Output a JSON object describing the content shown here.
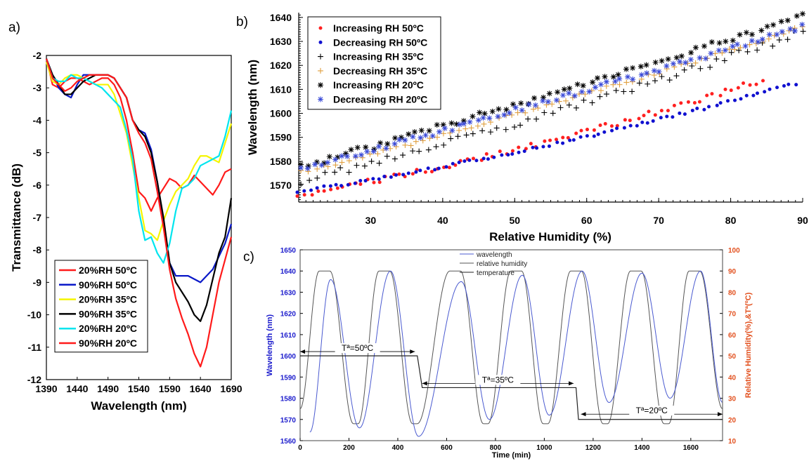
{
  "chart_data": [
    {
      "panel": "a)",
      "type": "line",
      "xlabel": "Wavelength (nm)",
      "ylabel": "Transmittance (dB)",
      "xlim": [
        1390,
        1690
      ],
      "ylim": [
        -12,
        -2
      ],
      "xticks": [
        1390,
        1440,
        1490,
        1540,
        1590,
        1640,
        1690
      ],
      "yticks": [
        -12,
        -11,
        -10,
        -9,
        -8,
        -7,
        -6,
        -5,
        -4,
        -3,
        -2
      ],
      "legend_position": "bottom-left",
      "series": [
        {
          "name": "20%RH 50ºC",
          "color": "#ff1a1a",
          "x": [
            1390,
            1400,
            1410,
            1420,
            1430,
            1440,
            1450,
            1460,
            1470,
            1480,
            1490,
            1500,
            1510,
            1520,
            1530,
            1540,
            1550,
            1560,
            1570,
            1580,
            1590,
            1600,
            1610,
            1620,
            1630,
            1640,
            1650,
            1660,
            1670,
            1680,
            1690
          ],
          "y": [
            -2.1,
            -2.9,
            -3.0,
            -2.8,
            -2.7,
            -2.7,
            -2.8,
            -2.9,
            -2.8,
            -2.7,
            -2.7,
            -2.9,
            -3.3,
            -4.0,
            -5.0,
            -6.2,
            -6.4,
            -6.8,
            -6.4,
            -6.1,
            -5.8,
            -5.9,
            -6.1,
            -6.0,
            -5.7,
            -5.9,
            -6.1,
            -6.3,
            -6.0,
            -5.6,
            -5.5
          ]
        },
        {
          "name": "90%RH 50ºC",
          "color": "#0a18c8",
          "x": [
            1390,
            1400,
            1410,
            1420,
            1430,
            1440,
            1450,
            1460,
            1470,
            1480,
            1490,
            1500,
            1510,
            1520,
            1530,
            1540,
            1550,
            1560,
            1570,
            1580,
            1590,
            1600,
            1610,
            1620,
            1630,
            1640,
            1650,
            1660,
            1670,
            1680,
            1690
          ],
          "y": [
            -2.1,
            -2.6,
            -3.0,
            -3.2,
            -3.3,
            -2.9,
            -2.6,
            -2.6,
            -2.6,
            -2.6,
            -2.6,
            -2.7,
            -3.0,
            -3.3,
            -4.0,
            -4.3,
            -4.4,
            -4.9,
            -5.9,
            -7.2,
            -8.4,
            -8.8,
            -8.8,
            -8.8,
            -8.9,
            -9.0,
            -8.8,
            -8.6,
            -8.2,
            -7.8,
            -7.2
          ]
        },
        {
          "name": "20%RH 35ºC",
          "color": "#f5f500",
          "x": [
            1390,
            1400,
            1410,
            1420,
            1430,
            1440,
            1450,
            1460,
            1470,
            1480,
            1490,
            1500,
            1510,
            1520,
            1530,
            1540,
            1550,
            1560,
            1570,
            1580,
            1590,
            1600,
            1610,
            1620,
            1630,
            1640,
            1650,
            1660,
            1670,
            1680,
            1690
          ],
          "y": [
            -2.2,
            -2.8,
            -2.9,
            -2.7,
            -2.6,
            -2.6,
            -2.7,
            -2.8,
            -2.9,
            -2.9,
            -2.9,
            -3.2,
            -3.8,
            -4.4,
            -5.4,
            -6.4,
            -7.4,
            -7.5,
            -7.7,
            -7.1,
            -6.6,
            -6.2,
            -6.0,
            -5.8,
            -5.4,
            -5.1,
            -5.1,
            -5.2,
            -5.3,
            -4.7,
            -4.1
          ]
        },
        {
          "name": "90%RH 35ºC",
          "color": "#000000",
          "x": [
            1390,
            1400,
            1410,
            1420,
            1430,
            1440,
            1450,
            1460,
            1470,
            1480,
            1490,
            1500,
            1510,
            1520,
            1530,
            1540,
            1550,
            1560,
            1570,
            1580,
            1590,
            1600,
            1610,
            1620,
            1630,
            1640,
            1650,
            1660,
            1670,
            1680,
            1690
          ],
          "y": [
            -2.1,
            -2.6,
            -2.9,
            -3.2,
            -3.2,
            -3.0,
            -2.8,
            -2.7,
            -2.6,
            -2.6,
            -2.6,
            -2.7,
            -3.0,
            -3.3,
            -4.0,
            -4.3,
            -4.5,
            -5.0,
            -5.9,
            -7.0,
            -8.4,
            -9.0,
            -9.3,
            -9.6,
            -10.0,
            -10.2,
            -9.7,
            -8.9,
            -8.1,
            -7.6,
            -6.4
          ]
        },
        {
          "name": "20%RH 20ºC",
          "color": "#00e5ee",
          "x": [
            1390,
            1400,
            1410,
            1420,
            1430,
            1440,
            1450,
            1460,
            1470,
            1480,
            1490,
            1500,
            1510,
            1520,
            1530,
            1540,
            1550,
            1560,
            1570,
            1580,
            1590,
            1600,
            1610,
            1620,
            1630,
            1640,
            1650,
            1660,
            1670,
            1680,
            1690
          ],
          "y": [
            -2.1,
            -2.7,
            -2.8,
            -2.8,
            -2.6,
            -2.7,
            -2.7,
            -2.8,
            -2.9,
            -3.0,
            -3.2,
            -3.4,
            -3.6,
            -4.3,
            -5.2,
            -6.8,
            -7.7,
            -7.6,
            -8.1,
            -8.4,
            -7.8,
            -6.8,
            -6.1,
            -6.0,
            -5.8,
            -5.4,
            -5.3,
            -5.2,
            -5.1,
            -4.5,
            -3.7
          ]
        },
        {
          "name": "90%RH 20ºC",
          "color": "#ff1a1a",
          "x": [
            1390,
            1400,
            1410,
            1420,
            1430,
            1440,
            1450,
            1460,
            1470,
            1480,
            1490,
            1500,
            1510,
            1520,
            1530,
            1540,
            1550,
            1560,
            1570,
            1580,
            1590,
            1600,
            1610,
            1620,
            1630,
            1640,
            1650,
            1660,
            1670,
            1680,
            1690
          ],
          "y": [
            -2.1,
            -2.7,
            -2.9,
            -3.1,
            -3.0,
            -2.8,
            -2.7,
            -2.6,
            -2.6,
            -2.6,
            -2.6,
            -2.7,
            -3.0,
            -3.3,
            -4.0,
            -4.4,
            -4.7,
            -5.2,
            -6.2,
            -7.3,
            -8.6,
            -9.5,
            -10.1,
            -10.6,
            -11.2,
            -11.6,
            -11.0,
            -10.0,
            -9.0,
            -8.3,
            -7.6
          ]
        }
      ]
    },
    {
      "panel": "b)",
      "type": "scatter",
      "xlabel": "Relative Humidity (%)",
      "ylabel": "Wavelength (nm)",
      "xlim": [
        20,
        90
      ],
      "ylim": [
        1563,
        1642
      ],
      "xticks": [
        30,
        40,
        50,
        60,
        70,
        80,
        90
      ],
      "yticks": [
        1570,
        1580,
        1590,
        1600,
        1610,
        1620,
        1630,
        1640
      ],
      "legend_position": "top-left",
      "series": [
        {
          "name": "Increasing RH 50ºC",
          "color": "#ff2020",
          "marker": "dot",
          "x0": 20.0,
          "x1": 84.5,
          "y0": 1566.0,
          "y1": 1614.0,
          "curve": 0.25,
          "n": 75,
          "noise": 1.2
        },
        {
          "name": "Decreasing RH 50ºC",
          "color": "#1010d0",
          "marker": "dot",
          "x0": 20.0,
          "x1": 89.0,
          "y0": 1567.5,
          "y1": 1612.5,
          "curve": 0.25,
          "n": 82,
          "noise": 0.6
        },
        {
          "name": "Increasing RH 35ºC",
          "color": "#000000",
          "marker": "plus",
          "x0": 20.5,
          "x1": 90.0,
          "y0": 1572.0,
          "y1": 1634.0,
          "curve": 0.15,
          "n": 65,
          "noise": 1.6
        },
        {
          "name": "Decreasing RH 35ºC",
          "color": "#e0a040",
          "marker": "plus",
          "x0": 20.5,
          "x1": 90.0,
          "y0": 1575.5,
          "y1": 1636.0,
          "curve": 0.1,
          "n": 75,
          "noise": 0.9
        },
        {
          "name": "Increasing RH 20ºC",
          "color": "#000000",
          "marker": "star",
          "x0": 20.5,
          "x1": 90.0,
          "y0": 1578.0,
          "y1": 1640.5,
          "curve": 0.05,
          "n": 72,
          "noise": 1.3
        },
        {
          "name": "Decreasing RH 20ºC",
          "color": "#3a4ad8",
          "marker": "star",
          "x0": 20.5,
          "x1": 90.0,
          "y0": 1577.0,
          "y1": 1636.0,
          "curve": 0.05,
          "n": 78,
          "noise": 1.1
        }
      ]
    },
    {
      "panel": "c)",
      "type": "line",
      "xlabel": "Time (min)",
      "ylabel": "Wavelength (nm)",
      "y2label": "Relative Humidity(%),&Tª(ºC)",
      "xlim": [
        0,
        1730
      ],
      "ylim": [
        1560,
        1650
      ],
      "y2lim": [
        10,
        100
      ],
      "xticks": [
        0,
        200,
        400,
        600,
        800,
        1000,
        1200,
        1400,
        1600
      ],
      "yticks": [
        1560,
        1570,
        1580,
        1590,
        1600,
        1610,
        1620,
        1630,
        1640,
        1650
      ],
      "y2ticks": [
        10,
        20,
        30,
        40,
        50,
        60,
        70,
        80,
        90,
        100
      ],
      "legend_position": "top-center",
      "legend": [
        "wavelength",
        "relative humidity",
        "temperature"
      ],
      "annotations": [
        "Tª=50ºC",
        "Tª=35ºC",
        "Tª=20ºC"
      ],
      "temperature_steps": [
        {
          "x0": 0,
          "x1": 480,
          "y": 50
        },
        {
          "x0": 500,
          "x1": 1130,
          "y": 35
        },
        {
          "x0": 1140,
          "x1": 1730,
          "y": 20
        }
      ],
      "humidity_peak_times": [
        100,
        345,
        635,
        885,
        1130,
        1375,
        1615
      ],
      "humidity_trough_times": [
        228,
        470,
        760,
        1005,
        1250,
        1500
      ],
      "humidity_range": [
        18,
        90
      ],
      "wavelength_peaks": [
        1636,
        1640,
        1635,
        1638,
        1640,
        1639,
        1640
      ],
      "wavelength_troughs": [
        1566,
        1562,
        1570,
        1572,
        1578,
        1580
      ]
    }
  ],
  "axis_colors": {
    "left_c": "#1a1acc",
    "right_c": "#e2501e",
    "humidity_line": "#555555",
    "wavelength_line": "#4a5ad0"
  }
}
